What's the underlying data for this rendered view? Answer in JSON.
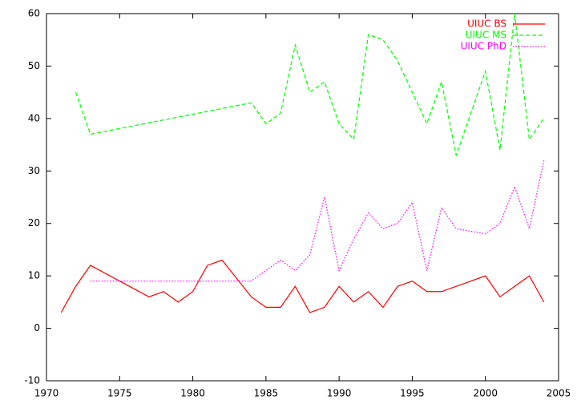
{
  "chart_data": {
    "type": "line",
    "xlim": [
      1970,
      2005
    ],
    "xticks": [
      1970,
      1975,
      1980,
      1985,
      1990,
      1995,
      2000,
      2005
    ],
    "ylim": [
      -10,
      60
    ],
    "yticks": [
      -10,
      0,
      10,
      20,
      30,
      40,
      50,
      60
    ],
    "legend": "top-right",
    "series": [
      {
        "name": "UIUC BS",
        "color": "#ff0000",
        "dash": "solid",
        "x": [
          1971,
          1972,
          1973,
          1977,
          1978,
          1979,
          1980,
          1981,
          1982,
          1984,
          1985,
          1986,
          1987,
          1988,
          1989,
          1990,
          1991,
          1992,
          1993,
          1994,
          1995,
          1996,
          1997,
          2000,
          2001,
          2003,
          2004
        ],
        "values": [
          3,
          8,
          12,
          6,
          7,
          5,
          7,
          12,
          13,
          6,
          4,
          4,
          8,
          3,
          4,
          8,
          5,
          7,
          4,
          8,
          9,
          7,
          7,
          10,
          6,
          10,
          5
        ]
      },
      {
        "name": "UIUC MS",
        "color": "#00ff00",
        "dash": "dashed",
        "x": [
          1972,
          1973,
          1984,
          1985,
          1986,
          1987,
          1988,
          1989,
          1990,
          1991,
          1992,
          1993,
          1994,
          1996,
          1997,
          1998,
          2000,
          2001,
          2002,
          2003,
          2004
        ],
        "values": [
          45,
          37,
          43,
          39,
          41,
          54,
          45,
          47,
          39,
          36,
          56,
          55,
          51,
          39,
          47,
          33,
          49,
          34,
          60,
          36,
          40
        ]
      },
      {
        "name": "UIUC PhD",
        "color": "#ff00ff",
        "dash": "dotted",
        "x": [
          1973,
          1984,
          1986,
          1987,
          1988,
          1989,
          1990,
          1991,
          1992,
          1993,
          1994,
          1995,
          1996,
          1997,
          1998,
          2000,
          2001,
          2002,
          2003,
          2004
        ],
        "values": [
          9,
          9,
          13,
          11,
          14,
          25,
          11,
          17,
          22,
          19,
          20,
          24,
          11,
          23,
          19,
          18,
          20,
          27,
          19,
          32
        ]
      }
    ]
  }
}
